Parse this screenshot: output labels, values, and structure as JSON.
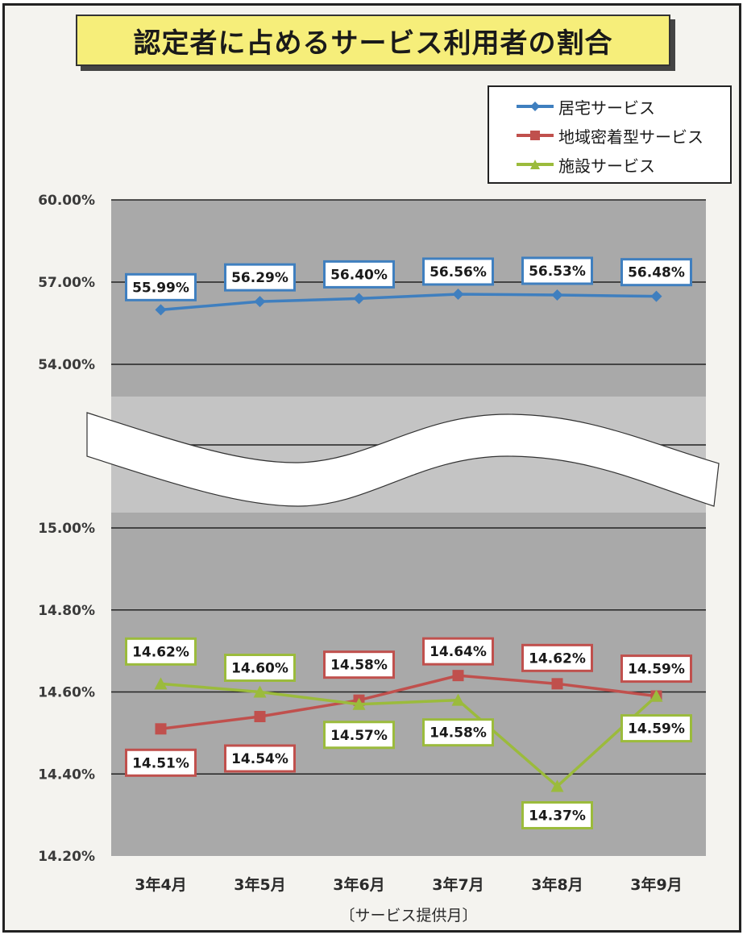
{
  "chart_data": {
    "type": "line",
    "title": "認定者に占めるサービス利用者の割合",
    "xlabel": "〔サービス提供月〕",
    "ylabel": "",
    "categories": [
      "3年4月",
      "3年5月",
      "3年6月",
      "3年7月",
      "3年8月",
      "3年9月"
    ],
    "axis_break": {
      "upper_range": [
        54.0,
        60.0
      ],
      "lower_range": [
        14.2,
        15.0
      ]
    },
    "upper_ticks": [
      "60.00%",
      "57.00%",
      "54.00%"
    ],
    "lower_ticks": [
      "15.00%",
      "14.80%",
      "14.60%",
      "14.40%",
      "14.20%"
    ],
    "grid": true,
    "legend_position": "top-right",
    "series": [
      {
        "name": "居宅サービス",
        "panel": "upper",
        "color": "#3f7fbf",
        "marker": "diamond",
        "values": [
          55.99,
          56.29,
          56.4,
          56.56,
          56.53,
          56.48
        ],
        "labels": [
          "55.99%",
          "56.29%",
          "56.40%",
          "56.56%",
          "56.53%",
          "56.48%"
        ]
      },
      {
        "name": "地域密着型サービス",
        "panel": "lower",
        "color": "#c0504d",
        "marker": "square",
        "values": [
          14.51,
          14.54,
          14.58,
          14.64,
          14.62,
          14.59
        ],
        "labels": [
          "14.51%",
          "14.54%",
          "14.58%",
          "14.64%",
          "14.62%",
          "14.59%"
        ]
      },
      {
        "name": "施設サービス",
        "panel": "lower",
        "color": "#9bbb3c",
        "marker": "triangle",
        "values": [
          14.62,
          14.6,
          14.57,
          14.58,
          14.37,
          14.59
        ],
        "labels": [
          "14.62%",
          "14.60%",
          "14.57%",
          "14.58%",
          "14.37%",
          "14.59%"
        ]
      }
    ]
  }
}
